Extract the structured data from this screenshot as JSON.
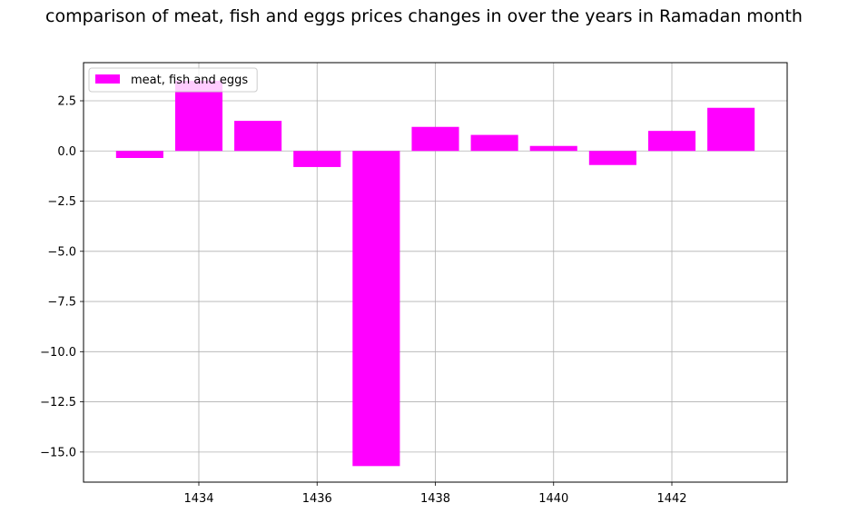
{
  "chart_data": {
    "type": "bar",
    "title": "comparison of meat, fish and eggs prices changes in over the years in Ramadan month",
    "xlabel": "",
    "ylabel": "",
    "x": [
      1433,
      1434,
      1435,
      1436,
      1437,
      1438,
      1439,
      1440,
      1441,
      1442,
      1443
    ],
    "series": [
      {
        "name": "meat, fish and eggs",
        "color": "#ff00ff",
        "values": [
          -0.35,
          3.5,
          1.5,
          -0.8,
          -15.7,
          1.2,
          0.8,
          0.25,
          -0.7,
          1.0,
          2.15
        ]
      }
    ],
    "xlim": [
      1432.05,
      1443.95
    ],
    "ylim": [
      -16.5,
      4.4
    ],
    "xticks": [
      1434,
      1436,
      1438,
      1440,
      1442
    ],
    "xtick_labels": [
      "1434",
      "1436",
      "1438",
      "1440",
      "1442"
    ],
    "yticks": [
      2.5,
      0.0,
      -2.5,
      -5.0,
      -7.5,
      -10.0,
      -12.5,
      -15.0
    ],
    "ytick_labels": [
      "2.5",
      "0.0",
      "−2.5",
      "−5.0",
      "−7.5",
      "−10.0",
      "−12.5",
      "−15.0"
    ],
    "bar_width": 0.8,
    "grid": true,
    "legend_position": "top-left"
  }
}
